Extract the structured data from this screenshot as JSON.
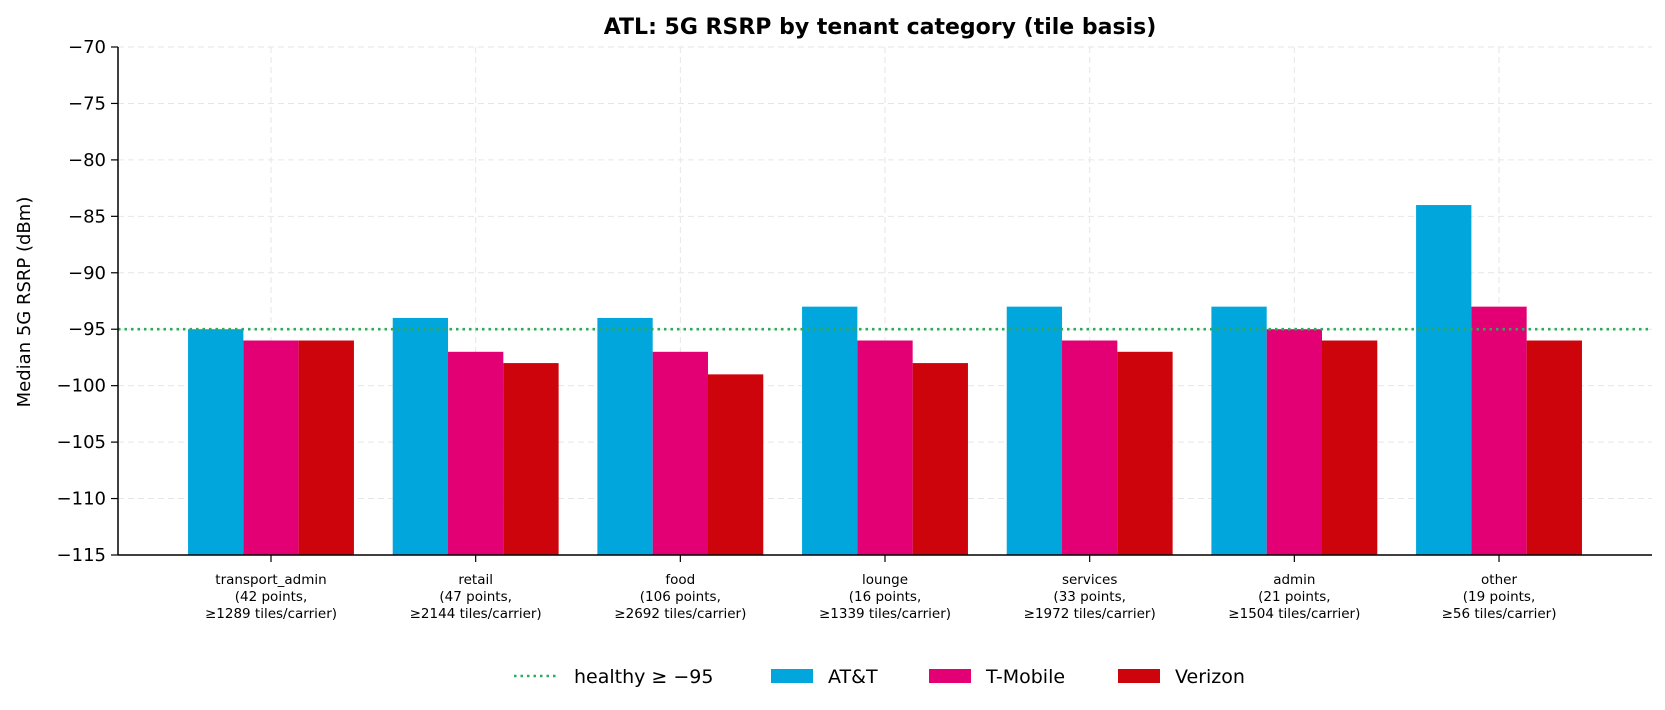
{
  "chart_data": {
    "type": "bar",
    "title": "ATL: 5G RSRP by tenant category (tile basis)",
    "ylabel": "Median 5G RSRP (dBm)",
    "xlabel": "",
    "ylim": [
      -115,
      -70
    ],
    "yticks": [
      -70,
      -75,
      -80,
      -85,
      -90,
      -95,
      -100,
      -105,
      -110,
      -115
    ],
    "ytick_labels": [
      "−70",
      "−75",
      "−80",
      "−85",
      "−90",
      "−95",
      "−100",
      "−105",
      "−110",
      "−115"
    ],
    "grid": true,
    "categories": [
      "transport_admin",
      "retail",
      "food",
      "lounge",
      "services",
      "admin",
      "other"
    ],
    "category_labels": [
      [
        "transport_admin",
        "(42 points,",
        "≥1289 tiles/carrier)"
      ],
      [
        "retail",
        "(47 points,",
        "≥2144 tiles/carrier)"
      ],
      [
        "food",
        "(106 points,",
        "≥2692 tiles/carrier)"
      ],
      [
        "lounge",
        "(16 points,",
        "≥1339 tiles/carrier)"
      ],
      [
        "services",
        "(33 points,",
        "≥1972 tiles/carrier)"
      ],
      [
        "admin",
        "(21 points,",
        "≥1504 tiles/carrier)"
      ],
      [
        "other",
        "(19 points,",
        "≥56 tiles/carrier)"
      ]
    ],
    "series": [
      {
        "name": "AT&T",
        "color": "#00a6dc",
        "values": [
          -95,
          -94,
          -94,
          -93,
          -93,
          -93,
          -84
        ]
      },
      {
        "name": "T-Mobile",
        "color": "#e20074",
        "values": [
          -96,
          -97,
          -97,
          -96,
          -96,
          -95,
          -93
        ]
      },
      {
        "name": "Verizon",
        "color": "#cd040b",
        "values": [
          -96,
          -98,
          -99,
          -98,
          -97,
          -96,
          -96
        ]
      }
    ],
    "reference_line": {
      "label": "healthy ≥ −95",
      "value": -95,
      "color": "#2eaa5e",
      "style": "dotted"
    },
    "legend_position": "bottom-center"
  }
}
